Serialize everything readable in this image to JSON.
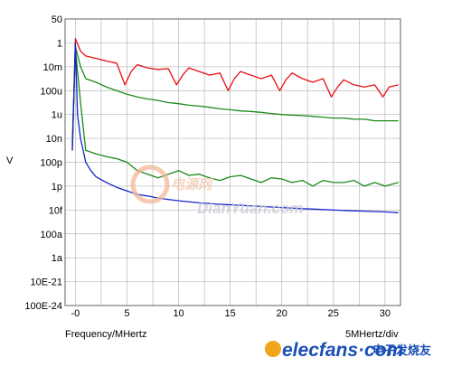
{
  "chart_data": {
    "type": "line",
    "title": "",
    "xlabel": "Frequency/MHertz",
    "x_scale_note": "5MHertz/div",
    "ylabel": "V",
    "xlim": [
      -1,
      31.5
    ],
    "x_ticks": [
      {
        "value": 0,
        "label": "-0"
      },
      {
        "value": 5,
        "label": "5"
      },
      {
        "value": 10,
        "label": "10"
      },
      {
        "value": 15,
        "label": "15"
      },
      {
        "value": 20,
        "label": "20"
      },
      {
        "value": 25,
        "label": "25"
      },
      {
        "value": 30,
        "label": "30"
      }
    ],
    "y_scale": "log",
    "ylim": [
      1e-24,
      50
    ],
    "y_ticks": [
      {
        "value": 50,
        "label": "50"
      },
      {
        "value": 1,
        "label": "1"
      },
      {
        "value": 0.01,
        "label": "10m"
      },
      {
        "value": 0.0001,
        "label": "100u"
      },
      {
        "value": 1e-06,
        "label": "1u"
      },
      {
        "value": 1e-08,
        "label": "10n"
      },
      {
        "value": 1e-10,
        "label": "100p"
      },
      {
        "value": 1e-12,
        "label": "1p"
      },
      {
        "value": 1e-14,
        "label": "10f"
      },
      {
        "value": 1e-16,
        "label": "100a"
      },
      {
        "value": 1e-18,
        "label": "1a"
      },
      {
        "value": 1e-21,
        "label": "10E-21"
      },
      {
        "value": 1e-24,
        "label": "100E-24"
      }
    ],
    "grid": true,
    "series": [
      {
        "color": "#e81010",
        "x": [
          -0.3,
          0,
          0.5,
          1,
          2,
          3,
          4,
          4.8,
          5.4,
          6,
          7,
          8,
          9,
          9.8,
          10.4,
          11,
          12,
          13,
          14,
          14.8,
          15.4,
          16,
          17,
          18,
          19,
          19.8,
          20.4,
          21,
          22,
          23,
          24,
          24.8,
          25.4,
          26,
          27,
          28,
          29,
          29.8,
          30.4,
          31.3
        ],
        "y": [
          1e-09,
          2,
          0.2,
          0.08,
          0.05,
          0.03,
          0.02,
          0.0003,
          0.004,
          0.015,
          0.008,
          0.006,
          0.007,
          0.0003,
          0.002,
          0.008,
          0.004,
          0.002,
          0.003,
          0.0001,
          0.001,
          0.004,
          0.002,
          0.001,
          0.002,
          0.0001,
          0.0008,
          0.003,
          0.001,
          0.0005,
          0.001,
          3e-05,
          0.0002,
          0.0008,
          0.0003,
          0.0002,
          0.0003,
          3e-05,
          0.0002,
          0.0003
        ]
      },
      {
        "color": "#1a8a1a",
        "x": [
          -0.3,
          0,
          0.5,
          1,
          2,
          3,
          4,
          5,
          6,
          7,
          8,
          9,
          10,
          11,
          12,
          13,
          14,
          15,
          16,
          17,
          18,
          19,
          20,
          21,
          22,
          23,
          24,
          25,
          26,
          27,
          28,
          29,
          30,
          31.3
        ],
        "y": [
          2e-09,
          0.3,
          1e-05,
          1e-09,
          5e-10,
          3e-10,
          2e-10,
          1e-10,
          2e-11,
          1e-11,
          5e-12,
          1e-11,
          2e-11,
          8e-12,
          1e-11,
          5e-12,
          3e-12,
          6e-12,
          8e-12,
          4e-12,
          2e-12,
          5e-12,
          4e-12,
          2e-12,
          3e-12,
          1e-12,
          3e-12,
          2e-12,
          2e-12,
          3e-12,
          1e-12,
          2e-12,
          1e-12,
          2e-12
        ]
      },
      {
        "color": "#1a8a1a",
        "x": [
          -0.3,
          0,
          0.5,
          1,
          2,
          3,
          4,
          5,
          6,
          7,
          8,
          9,
          10,
          11,
          12,
          13,
          14,
          15,
          16,
          17,
          18,
          19,
          20,
          21,
          22,
          23,
          24,
          25,
          26,
          27,
          28,
          29,
          30,
          31.3
        ],
        "y": [
          5e-09,
          0.5,
          0.01,
          0.001,
          0.0005,
          0.0002,
          0.0001,
          5e-05,
          3e-05,
          2e-05,
          1.5e-05,
          1e-05,
          8e-06,
          6e-06,
          5e-06,
          4e-06,
          3e-06,
          2.5e-06,
          2e-06,
          1.8e-06,
          1.5e-06,
          1.2e-06,
          1e-06,
          9e-07,
          8e-07,
          7e-07,
          6e-07,
          5e-07,
          5e-07,
          4e-07,
          4e-07,
          3e-07,
          3e-07,
          3e-07
        ]
      },
      {
        "color": "#1426c8",
        "x": [
          -0.3,
          0,
          0.2,
          0.5,
          1,
          1.5,
          2,
          3,
          4,
          5,
          6,
          7,
          8,
          10,
          12,
          14,
          16,
          18,
          20,
          22,
          24,
          26,
          28,
          30,
          31.3
        ],
        "y": [
          1e-09,
          1,
          1e-06,
          1e-08,
          1e-10,
          2e-11,
          6e-12,
          2e-12,
          8e-13,
          4e-13,
          2e-13,
          1.5e-13,
          1e-13,
          6e-14,
          4e-14,
          3e-14,
          2.5e-14,
          2e-14,
          1.6e-14,
          1.3e-14,
          1.1e-14,
          9e-15,
          8e-15,
          7e-15,
          6e-15
        ]
      }
    ]
  },
  "watermark": {
    "cn_logo": "电源网",
    "site": "DianYuan.com"
  },
  "brand": {
    "name": "elecfans·com",
    "cn": "电子发烧友"
  },
  "colors": {
    "grid": "#b8b8b8",
    "frame": "#606060",
    "red": "#e81010",
    "green": "#1a8a1a",
    "blue": "#1426c8"
  }
}
